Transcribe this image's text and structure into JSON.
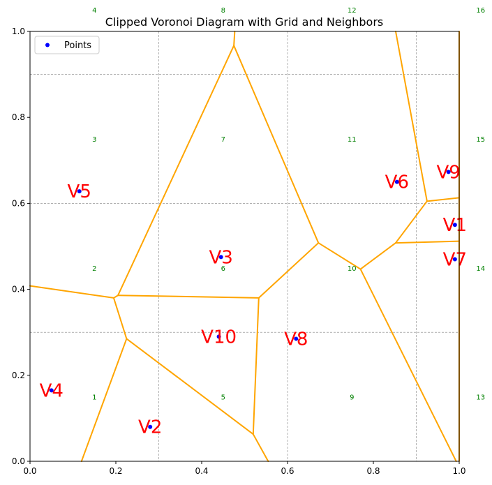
{
  "chart_data": {
    "type": "scatter",
    "title": "Clipped Voronoi Diagram with Grid and Neighbors",
    "xlabel": "",
    "ylabel": "",
    "xlim": [
      0,
      1
    ],
    "ylim": [
      0,
      1
    ],
    "x_ticks": [
      "0.0",
      "0.2",
      "0.4",
      "0.6",
      "0.8",
      "1.0"
    ],
    "y_ticks": [
      "0.0",
      "0.2",
      "0.4",
      "0.6",
      "0.8",
      "1.0"
    ],
    "legend": {
      "placement": "top-left",
      "entries": [
        {
          "label": "Points",
          "color": "#0000ff"
        }
      ]
    },
    "colors": {
      "points": "#0000ff",
      "edges": "#ffa500",
      "labels": "#ff0000",
      "cell_labels": "#008000",
      "grid": "#808080"
    },
    "grid_lines": {
      "x": [
        0.3,
        0.6,
        0.9
      ],
      "y": [
        0.3,
        0.6,
        0.9
      ]
    },
    "points": [
      {
        "label": "V1",
        "x": 0.99,
        "y": 0.55
      },
      {
        "label": "V2",
        "x": 0.28,
        "y": 0.08
      },
      {
        "label": "V3",
        "x": 0.445,
        "y": 0.475
      },
      {
        "label": "V4",
        "x": 0.05,
        "y": 0.165
      },
      {
        "label": "V5",
        "x": 0.115,
        "y": 0.628
      },
      {
        "label": "V6",
        "x": 0.855,
        "y": 0.65
      },
      {
        "label": "V7",
        "x": 0.99,
        "y": 0.47
      },
      {
        "label": "V8",
        "x": 0.62,
        "y": 0.285
      },
      {
        "label": "V9",
        "x": 0.975,
        "y": 0.673
      },
      {
        "label": "V10",
        "x": 0.44,
        "y": 0.29
      }
    ],
    "voronoi_edges": [
      [
        [
          0.0,
          0.408
        ],
        [
          0.195,
          0.38
        ]
      ],
      [
        [
          0.195,
          0.38
        ],
        [
          0.205,
          0.386
        ]
      ],
      [
        [
          0.195,
          0.38
        ],
        [
          0.225,
          0.285
        ]
      ],
      [
        [
          0.225,
          0.285
        ],
        [
          0.12,
          0.0
        ]
      ],
      [
        [
          0.225,
          0.285
        ],
        [
          0.52,
          0.063
        ]
      ],
      [
        [
          0.52,
          0.063
        ],
        [
          0.555,
          0.0
        ]
      ],
      [
        [
          0.52,
          0.063
        ],
        [
          0.533,
          0.38
        ]
      ],
      [
        [
          0.205,
          0.386
        ],
        [
          0.533,
          0.38
        ]
      ],
      [
        [
          0.205,
          0.386
        ],
        [
          0.475,
          0.967
        ]
      ],
      [
        [
          0.475,
          0.967
        ],
        [
          0.477,
          1.0
        ]
      ],
      [
        [
          0.475,
          0.967
        ],
        [
          0.672,
          0.508
        ]
      ],
      [
        [
          0.533,
          0.38
        ],
        [
          0.672,
          0.508
        ]
      ],
      [
        [
          0.672,
          0.508
        ],
        [
          0.77,
          0.447
        ]
      ],
      [
        [
          0.77,
          0.447
        ],
        [
          0.993,
          0.0
        ]
      ],
      [
        [
          0.77,
          0.447
        ],
        [
          0.852,
          0.508
        ]
      ],
      [
        [
          0.852,
          0.508
        ],
        [
          1.0,
          0.512
        ]
      ],
      [
        [
          0.852,
          0.508
        ],
        [
          0.925,
          0.605
        ]
      ],
      [
        [
          0.925,
          0.605
        ],
        [
          1.0,
          0.613
        ]
      ],
      [
        [
          0.925,
          0.605
        ],
        [
          0.852,
          1.0
        ]
      ],
      [
        [
          1.0,
          0.0
        ],
        [
          1.0,
          1.0
        ]
      ]
    ],
    "cell_labels": [
      {
        "label": "1",
        "x": 0.15,
        "y": 0.15
      },
      {
        "label": "2",
        "x": 0.15,
        "y": 0.45
      },
      {
        "label": "3",
        "x": 0.15,
        "y": 0.75
      },
      {
        "label": "4",
        "x": 0.15,
        "y": 1.05
      },
      {
        "label": "5",
        "x": 0.45,
        "y": 0.15
      },
      {
        "label": "6",
        "x": 0.45,
        "y": 0.45
      },
      {
        "label": "7",
        "x": 0.45,
        "y": 0.75
      },
      {
        "label": "8",
        "x": 0.45,
        "y": 1.05
      },
      {
        "label": "9",
        "x": 0.75,
        "y": 0.15
      },
      {
        "label": "10",
        "x": 0.75,
        "y": 0.45
      },
      {
        "label": "11",
        "x": 0.75,
        "y": 0.75
      },
      {
        "label": "12",
        "x": 0.75,
        "y": 1.05
      },
      {
        "label": "13",
        "x": 1.05,
        "y": 0.15
      },
      {
        "label": "14",
        "x": 1.05,
        "y": 0.45
      },
      {
        "label": "15",
        "x": 1.05,
        "y": 0.75
      },
      {
        "label": "16",
        "x": 1.05,
        "y": 1.05
      }
    ]
  }
}
